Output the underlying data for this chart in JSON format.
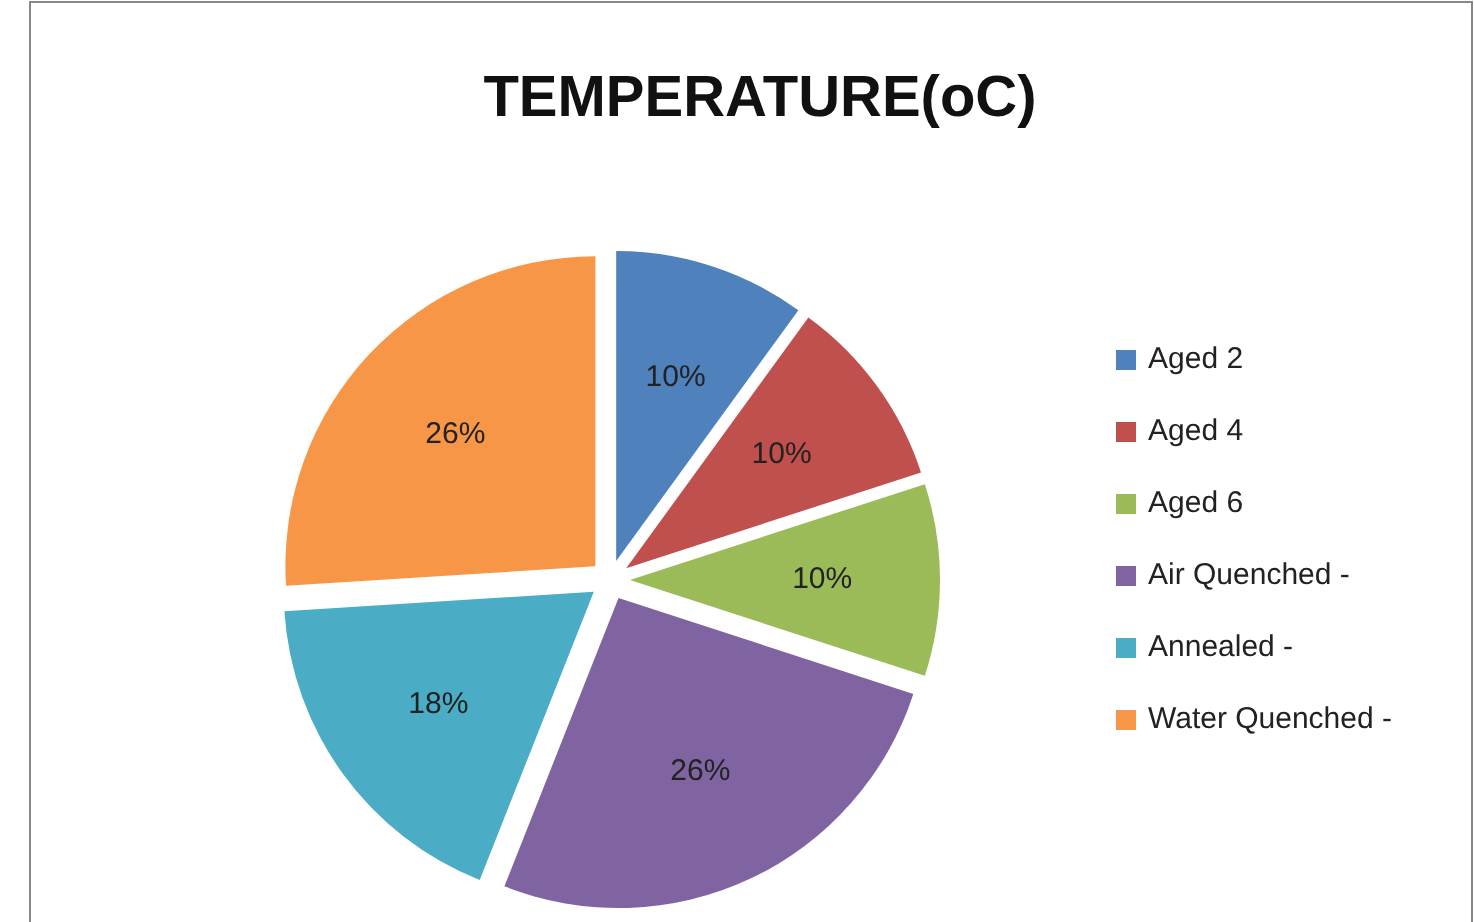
{
  "chart_data": {
    "type": "pie",
    "title": "TEMPERATURE(oC)",
    "categories": [
      "Aged 2",
      "Aged 4",
      "Aged 6",
      "Air Quenched -",
      "Annealed -",
      "Water Quenched -"
    ],
    "values": [
      10,
      10,
      10,
      26,
      18,
      26
    ],
    "value_labels": [
      "10%",
      "10%",
      "10%",
      "26%",
      "18%",
      "26%"
    ],
    "colors": [
      "#4f81bd",
      "#c0504d",
      "#9bbb59",
      "#8064a2",
      "#4bacc6",
      "#f79646"
    ],
    "legend": "right"
  }
}
